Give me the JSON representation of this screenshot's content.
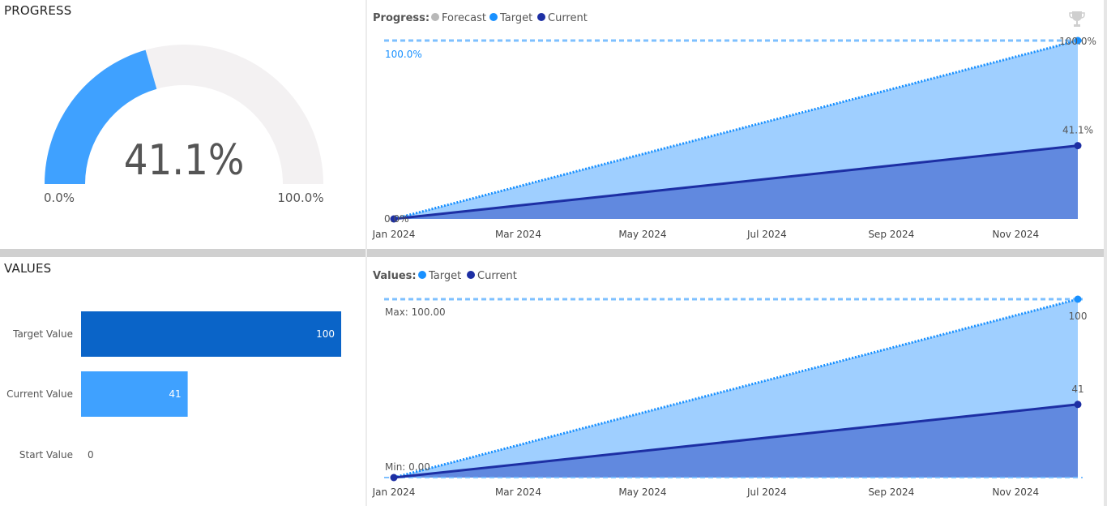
{
  "progress_section": {
    "title": "PROGRESS"
  },
  "values_section": {
    "title": "VALUES"
  },
  "colors": {
    "gauge_fill": "#3fa1ff",
    "gauge_track": "#f3f1f2",
    "target_area": "#9fcfff",
    "current_area": "#6189df",
    "current_line": "#1d2fa4",
    "target_dot": "#1890ff",
    "forecast_dot": "#b8b8b8",
    "target_bar": "#0a64c8",
    "current_bar": "#3fa1ff"
  },
  "chart_data": [
    {
      "type": "gauge",
      "value": 41.1,
      "min": 0,
      "max": 100,
      "value_label": "41.1%",
      "min_label": "0.0%",
      "max_label": "100.0%"
    },
    {
      "type": "area",
      "legend_title": "Progress:",
      "legend": [
        "Forecast",
        "Target",
        "Current"
      ],
      "x": [
        "Jan 2024",
        "Dec 2024"
      ],
      "x_ticks": [
        "Jan 2024",
        "Mar 2024",
        "May 2024",
        "Jul 2024",
        "Sep 2024",
        "Nov 2024"
      ],
      "ylim": [
        0,
        100
      ],
      "series": [
        {
          "name": "Target",
          "values": [
            0,
            100
          ]
        },
        {
          "name": "Current",
          "values": [
            0,
            41.1
          ]
        }
      ],
      "target_line_label": "100.0%",
      "start_label": "0.0%",
      "end_target_label": "100.0%",
      "end_current_label": "41.1%",
      "trophy_icon": "trophy-icon"
    },
    {
      "type": "bar",
      "orientation": "horizontal",
      "categories": [
        "Target Value",
        "Current Value",
        "Start Value"
      ],
      "values": [
        100,
        41,
        0
      ],
      "value_labels": [
        "100",
        "41",
        "0"
      ],
      "xlim": [
        0,
        100
      ]
    },
    {
      "type": "area",
      "legend_title": "Values:",
      "legend": [
        "Target",
        "Current"
      ],
      "x": [
        "Jan 2024",
        "Dec 2024"
      ],
      "x_ticks": [
        "Jan 2024",
        "Mar 2024",
        "May 2024",
        "Jul 2024",
        "Sep 2024",
        "Nov 2024"
      ],
      "ylim": [
        0,
        100
      ],
      "series": [
        {
          "name": "Target",
          "values": [
            0,
            100
          ]
        },
        {
          "name": "Current",
          "values": [
            0,
            41
          ]
        }
      ],
      "max_label": "Max: 100.00",
      "min_label": "Min: 0.00",
      "end_target_label": "100",
      "end_current_label": "41"
    }
  ]
}
